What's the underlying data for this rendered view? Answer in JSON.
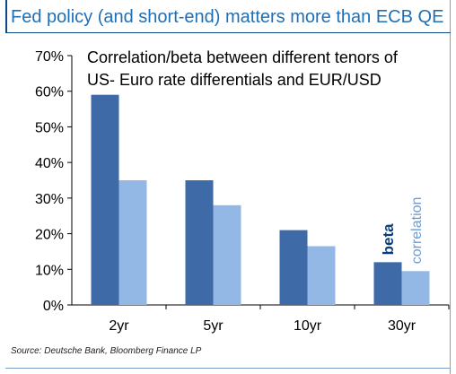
{
  "header": {
    "title": "Fed policy (and short-end) matters more than ECB QE"
  },
  "source": "Source: Deutsche Bank, Bloomberg Finance LP",
  "colors": {
    "beta": "#3e6aa8",
    "correlation": "#94b8e6",
    "accent": "#1f6fb5"
  },
  "chart_data": {
    "type": "bar",
    "title_lines": [
      "Correlation/beta between  different tenors of",
      "US- Euro rate differentials and EUR/USD"
    ],
    "categories": [
      "2yr",
      "5yr",
      "10yr",
      "30yr"
    ],
    "series": [
      {
        "name": "beta",
        "values": [
          59,
          35,
          21,
          12
        ]
      },
      {
        "name": "correlation",
        "values": [
          35,
          28,
          16.5,
          9.5
        ]
      }
    ],
    "ylim": [
      0,
      70
    ],
    "yticks": [
      "0%",
      "10%",
      "20%",
      "30%",
      "40%",
      "50%",
      "60%",
      "70%"
    ],
    "legend": "inline labels above 30yr bars",
    "grid": false
  }
}
